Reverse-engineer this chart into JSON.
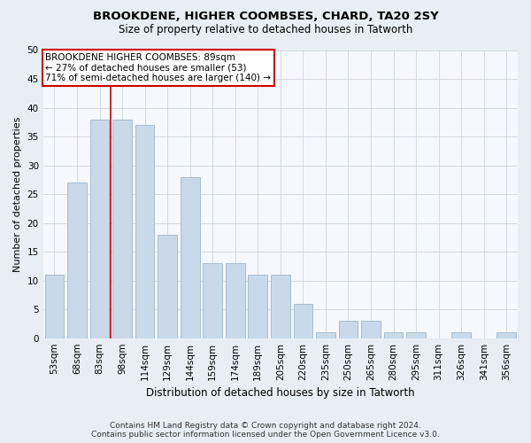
{
  "title": "BROOKDENE, HIGHER COOMBSES, CHARD, TA20 2SY",
  "subtitle": "Size of property relative to detached houses in Tatworth",
  "xlabel": "Distribution of detached houses by size in Tatworth",
  "ylabel": "Number of detached properties",
  "categories": [
    "53sqm",
    "68sqm",
    "83sqm",
    "98sqm",
    "114sqm",
    "129sqm",
    "144sqm",
    "159sqm",
    "174sqm",
    "189sqm",
    "205sqm",
    "220sqm",
    "235sqm",
    "250sqm",
    "265sqm",
    "280sqm",
    "295sqm",
    "311sqm",
    "326sqm",
    "341sqm",
    "356sqm"
  ],
  "values": [
    11,
    27,
    38,
    38,
    37,
    18,
    28,
    13,
    13,
    11,
    11,
    6,
    1,
    3,
    3,
    1,
    1,
    0,
    1,
    0,
    1
  ],
  "bar_color": "#c9d9ea",
  "bar_edgecolor": "#a0b8cc",
  "vline_x": 2.5,
  "vline_color": "#cc0000",
  "annotation_text": "BROOKDENE HIGHER COOMBSES: 89sqm\n← 27% of detached houses are smaller (53)\n71% of semi-detached houses are larger (140) →",
  "annotation_box_facecolor": "#ffffff",
  "annotation_box_edgecolor": "#cc0000",
  "ylim": [
    0,
    50
  ],
  "yticks": [
    0,
    5,
    10,
    15,
    20,
    25,
    30,
    35,
    40,
    45,
    50
  ],
  "footer_line1": "Contains HM Land Registry data © Crown copyright and database right 2024.",
  "footer_line2": "Contains public sector information licensed under the Open Government Licence v3.0.",
  "background_color": "#e8eef4",
  "plot_background_color": "#f5f8fc",
  "grid_color": "#c8cfd8",
  "title_fontsize": 9.5,
  "subtitle_fontsize": 8.5,
  "ylabel_fontsize": 8,
  "xlabel_fontsize": 8.5,
  "tick_fontsize": 7.5,
  "annotation_fontsize": 7.5,
  "footer_fontsize": 6.5
}
